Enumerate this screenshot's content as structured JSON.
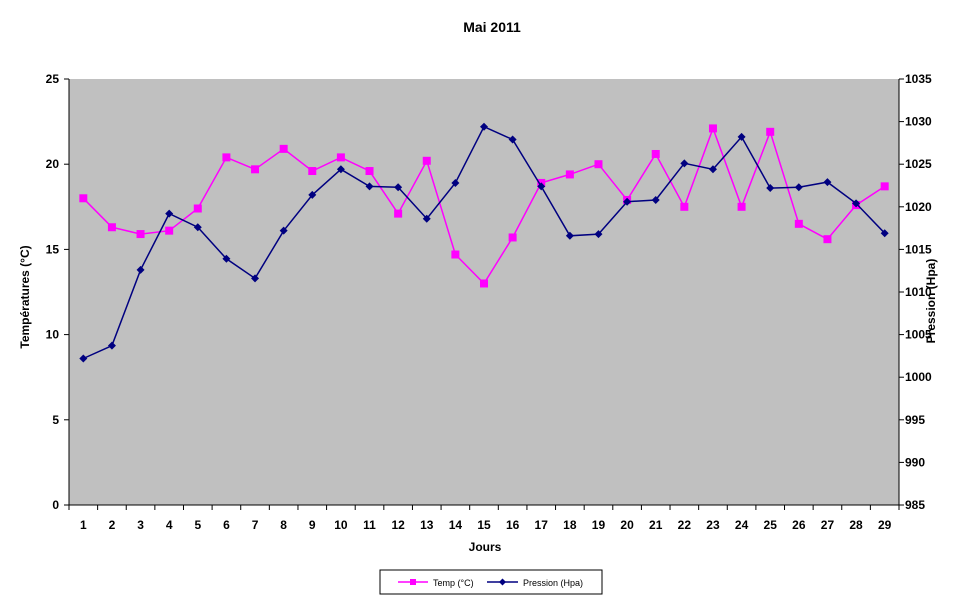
{
  "chart_data": {
    "type": "line",
    "title": "Mai 2011",
    "xlabel": "Jours",
    "ylabel": "Températures (°C)",
    "y2label": "Pression (Hpa)",
    "categories": [
      "1",
      "2",
      "3",
      "4",
      "5",
      "6",
      "7",
      "8",
      "9",
      "10",
      "11",
      "12",
      "13",
      "14",
      "15",
      "16",
      "17",
      "18",
      "19",
      "20",
      "21",
      "22",
      "23",
      "24",
      "25",
      "26",
      "27",
      "28",
      "29"
    ],
    "ylim": [
      0,
      25
    ],
    "yticks": [
      "0",
      "5",
      "10",
      "15",
      "20",
      "25"
    ],
    "y2lim": [
      985,
      1035
    ],
    "y2ticks": [
      "985",
      "990",
      "995",
      "1000",
      "1005",
      "1010",
      "1015",
      "1020",
      "1025",
      "1030",
      "1035"
    ],
    "plot_background": "#c0c0c0",
    "legend_position": "bottom",
    "series": [
      {
        "name": "Temp (°C)",
        "axis": "left",
        "color": "#ff00ff",
        "marker": "square",
        "values": [
          18.0,
          16.3,
          15.9,
          16.1,
          17.4,
          20.4,
          19.7,
          20.9,
          19.6,
          20.4,
          19.6,
          17.1,
          20.2,
          14.7,
          13.0,
          15.7,
          18.9,
          19.4,
          20.0,
          17.9,
          20.6,
          17.5,
          22.1,
          17.5,
          21.9,
          16.5,
          15.6,
          17.6,
          18.7
        ]
      },
      {
        "name": "Pression (Hpa)",
        "axis": "right",
        "color": "#000080",
        "marker": "diamond",
        "values": [
          1002.2,
          1003.7,
          1012.6,
          1019.2,
          1017.6,
          1013.9,
          1011.6,
          1017.2,
          1021.4,
          1024.4,
          1022.4,
          1022.3,
          1018.6,
          1022.8,
          1029.4,
          1027.9,
          1022.4,
          1016.6,
          1016.8,
          1020.6,
          1020.8,
          1025.1,
          1024.4,
          1028.2,
          1022.2,
          1022.3,
          1022.9,
          1020.4,
          1016.9
        ]
      }
    ]
  }
}
